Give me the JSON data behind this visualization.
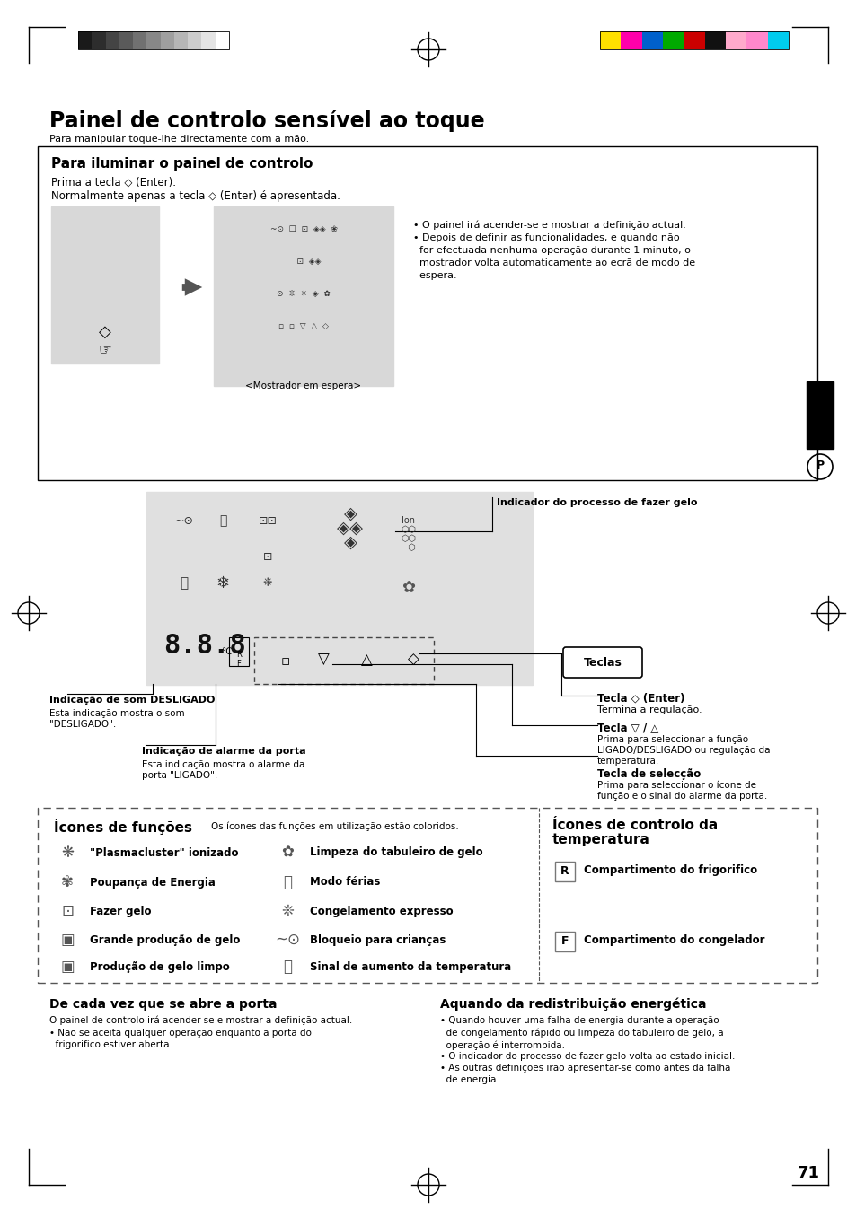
{
  "page_bg": "#ffffff",
  "title": "Painel de controlo sensível ao toque",
  "subtitle": "Para manipular toque-lhe directamente com a mão.",
  "section1_title": "Para iluminar o painel de controlo",
  "section1_line1": "Prima a tecla ◇ (Enter).",
  "section1_line2": "Normalmente apenas a tecla ◇ (Enter) é apresentada.",
  "bullet1": "• O painel irá acender-se e mostrar a definição actual.",
  "bullet2a": "• Depois de definir as funcionalidades, e quando não",
  "bullet2b": "  for efectuada nenhuma operação durante 1 minuto, o",
  "bullet2c": "  mostrador volta automaticamente ao ecrã de modo de",
  "bullet2d": "  espera.",
  "standby_label": "<Mostrador em espera>",
  "ice_indicator_label": "Indicador do processo de fazer gelo",
  "keys_label": "Teclas",
  "enter_key_title": "Tecla ◇ (Enter)",
  "enter_key_desc": "Termina a regulação.",
  "nav_key_title": "Tecla ▽ / △",
  "nav_key_desc1": "Prima para seleccionar a função",
  "nav_key_desc2": "LIGADO/DESLIGADO ou regulação da",
  "nav_key_desc3": "temperatura.",
  "sel_key_title": "Tecla de selecção",
  "sel_key_desc1": "Prima para seleccionar o ícone de",
  "sel_key_desc2": "função e o sinal do alarme da porta.",
  "sound_off_title": "Indicação de som DESLIGADO",
  "sound_off_desc1": "Esta indicação mostra o som",
  "sound_off_desc2": "\"DESLIGADO\".",
  "door_alarm_title": "Indicação de alarme da porta",
  "door_alarm_desc1": "Esta indicação mostra o alarme da",
  "door_alarm_desc2": "porta \"LIGADO\".",
  "icons_func_title": "Ícones de funções",
  "icons_func_note": "Os ícones das funções em utilização estão coloridos.",
  "icons_temp_title": "Ícones de controlo da",
  "icons_temp_title2": "temperatura",
  "func_labels_left": [
    "\"Plasmacluster\" ionizado",
    "Poupança de Energia",
    "Fazer gelo",
    "Grande produção de gelo",
    "Produção de gelo limpo"
  ],
  "func_labels_right": [
    "Limpeza do tabuleiro de gelo",
    "Modo férias",
    "Congelamento expresso",
    "Bloqueio para crianças",
    "Sinal de aumento da temperatura"
  ],
  "temp_label_r": "Compartimento do frigorifico",
  "temp_label_f": "Compartimento do congelador",
  "sec4_title1": "De cada vez que se abre a porta",
  "sec4_text1a": "O painel de controlo irá acender-se e mostrar a definição actual.",
  "sec4_text1b": "• Não se aceita qualquer operação enquanto a porta do",
  "sec4_text1c": "  frigorifico estiver aberta.",
  "sec4_title2": "Aquando da redistribuição energética",
  "sec4_text2a": "• Quando houver uma falha de energia durante a operação",
  "sec4_text2b": "  de congelamento rápido ou limpeza do tabuleiro de gelo, a",
  "sec4_text2c": "  operação é interrompida.",
  "sec4_text2d": "• O indicador do processo de fazer gelo volta ao estado inicial.",
  "sec4_text2e": "• As outras definições irão apresentar-se como antes da falha",
  "sec4_text2f": "  de energia.",
  "page_number": "71",
  "gray_bar_colors": [
    "#1a1a1a",
    "#2d2d2d",
    "#444444",
    "#5a5a5a",
    "#717171",
    "#888888",
    "#9f9f9f",
    "#b6b6b6",
    "#cdcdcd",
    "#e4e4e4",
    "#ffffff"
  ],
  "color_bar_colors": [
    "#ffe000",
    "#ff00aa",
    "#0060cc",
    "#00aa00",
    "#cc0000",
    "#111111",
    "#ffaacc",
    "#ff88cc",
    "#00ccee"
  ]
}
